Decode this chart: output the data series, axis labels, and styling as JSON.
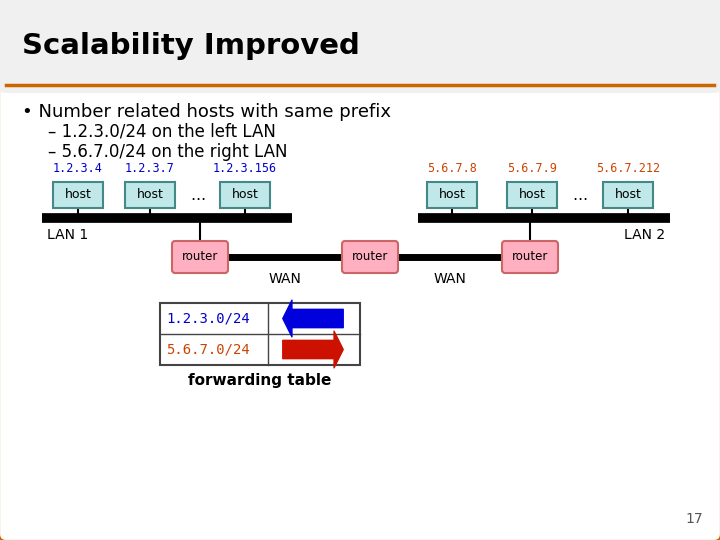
{
  "title": "Scalability Improved",
  "bullet": "• Number related hosts with same prefix",
  "sub1": "– 1.2.3.0/24 on the left LAN",
  "sub2": "– 5.6.7.0/24 on the right LAN",
  "bg_color": "#ffffff",
  "outer_border_color": "#cc6600",
  "title_bg": "#f5f5f5",
  "host_fill": "#c0e8e8",
  "host_edge": "#448888",
  "router_fill": "#ffb0c0",
  "router_edge": "#cc6666",
  "left_ips": [
    "1.2.3.4",
    "1.2.3.7",
    "1.2.3.156"
  ],
  "right_ips": [
    "5.6.7.8",
    "5.6.7.9",
    "5.6.7.212"
  ],
  "left_ip_color": "#0000cc",
  "right_ip_color": "#cc4400",
  "lan1_label": "LAN 1",
  "lan2_label": "LAN 2",
  "wan_label": "WAN",
  "host_label": "host",
  "router_label": "router",
  "fwd_row1": "1.2.3.0/24",
  "fwd_row2": "5.6.7.0/24",
  "fwd_label": "forwarding table",
  "arrow1_color": "#0000dd",
  "arrow2_color": "#cc1100",
  "page_num": "17"
}
